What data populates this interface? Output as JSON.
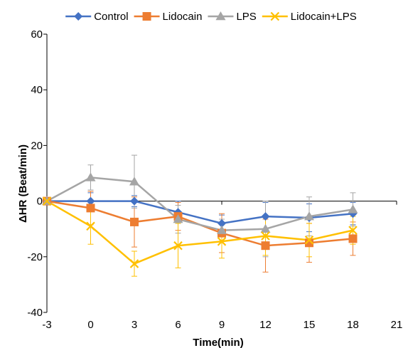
{
  "chart_data": {
    "type": "line",
    "xlabel": "Time(min)",
    "ylabel": "ΔHR (Beat/min)",
    "xlim": [
      -3,
      21
    ],
    "ylim": [
      -40,
      60
    ],
    "xticks": [
      -3,
      0,
      3,
      6,
      9,
      12,
      15,
      18,
      21
    ],
    "yticks": [
      -40,
      -20,
      0,
      20,
      40,
      60
    ],
    "grid": false,
    "legend_position": "top",
    "series": [
      {
        "name": "Control",
        "color": "#4472C4",
        "marker": "diamond",
        "x": [
          -3,
          0,
          3,
          6,
          9,
          12,
          15,
          18
        ],
        "y": [
          0,
          0,
          0,
          -4,
          -8,
          -5.5,
          -6,
          -4.5
        ],
        "error": [
          0,
          3,
          2,
          4,
          3,
          5,
          5,
          4
        ]
      },
      {
        "name": "Lidocain",
        "color": "#ED7D31",
        "marker": "square",
        "x": [
          -3,
          0,
          3,
          6,
          9,
          12,
          15,
          18
        ],
        "y": [
          0,
          -2.5,
          -7.5,
          -5.5,
          -11.5,
          -16,
          -15,
          -13.5
        ],
        "error": [
          0,
          6,
          9,
          5,
          7,
          9.5,
          7,
          6
        ]
      },
      {
        "name": "LPS",
        "color": "#A5A5A5",
        "marker": "triangle",
        "x": [
          -3,
          0,
          3,
          6,
          9,
          12,
          15,
          18
        ],
        "y": [
          0,
          8.5,
          7,
          -6.5,
          -10.5,
          -10,
          -5.5,
          -3
        ],
        "error": [
          0,
          4.5,
          9.5,
          5,
          4,
          10,
          7,
          6
        ]
      },
      {
        "name": "Lidocain+LPS",
        "color": "#FFC000",
        "marker": "x",
        "x": [
          -3,
          0,
          3,
          6,
          9,
          12,
          15,
          18
        ],
        "y": [
          0,
          -9,
          -22.5,
          -16,
          -14.5,
          -12.5,
          -14,
          -10.5
        ],
        "error": [
          0,
          6.5,
          4.5,
          8,
          6,
          7,
          6,
          5
        ]
      }
    ]
  }
}
